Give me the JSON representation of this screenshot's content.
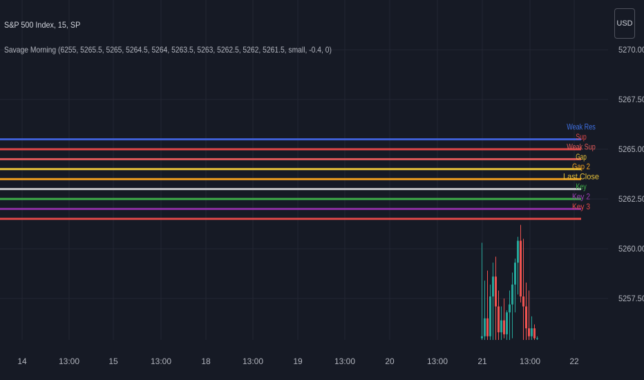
{
  "header": {
    "symbol_title": "S&P 500 Index, 15, SP",
    "indicator_text": "Savage Morning (6255, 5265.5, 5265, 5264.5, 5264, 5263.5, 5263, 5262.5, 5262, 5261.5, small, -0.4, 0)"
  },
  "currency_button": {
    "label": "USD"
  },
  "colors": {
    "background": "#161a25",
    "grid": "#232632",
    "axis_text": "#b2b5be",
    "candle_up": "#26a69a",
    "candle_down": "#ef5350"
  },
  "chart_data": {
    "type": "candlestick",
    "title": "S&P 500 Index, 15, SP",
    "y_axis": {
      "range": [
        5255.4,
        5270.1
      ],
      "ticks": [
        5257.5,
        5260.0,
        5262.5,
        5265.0,
        5267.5,
        5270.0
      ],
      "tick_labels": [
        "5257.50",
        "5260.00",
        "5262.50",
        "5265.00",
        "5267.50",
        "5270.00"
      ],
      "position": "right"
    },
    "x_axis": {
      "tick_labels": [
        "14",
        "13:00",
        "15",
        "13:00",
        "18",
        "13:00",
        "19",
        "13:00",
        "20",
        "13:00",
        "21",
        "13:00",
        "22"
      ]
    },
    "grid": true,
    "levels": [
      {
        "price": 5265.5,
        "label": "Weak Res",
        "color": "#3f5fd4",
        "label_color": "#3f6fe0"
      },
      {
        "price": 5265.0,
        "label": "Sup",
        "color": "#e04848",
        "label_color": "#e04848"
      },
      {
        "price": 5264.5,
        "label": "Weak Sup",
        "color": "#e05a5a",
        "label_color": "#e05a5a"
      },
      {
        "price": 5264.0,
        "label": "Gap",
        "color": "#e8c23a",
        "label_color": "#e8c23a"
      },
      {
        "price": 5263.5,
        "label": "Gap 2",
        "color": "#f0a020",
        "label_color": "#f0a020"
      },
      {
        "price": 5263.0,
        "label": "Last Close",
        "color": "#c9c9c9",
        "label_color": "#e8c23a"
      },
      {
        "price": 5262.5,
        "label": "Key",
        "color": "#3fae49",
        "label_color": "#3fae49"
      },
      {
        "price": 5262.0,
        "label": "Key 2",
        "color": "#8e2fa3",
        "label_color": "#9a3fb0"
      },
      {
        "price": 5261.5,
        "label": "Key 3",
        "color": "#e04848",
        "label_color": "#e04848"
      }
    ],
    "candles": [
      {
        "o": 5255.5,
        "h": 5260.3,
        "l": 5255.4,
        "c": 5255.6
      },
      {
        "o": 5255.6,
        "h": 5258.4,
        "l": 5255.4,
        "c": 5256.5
      },
      {
        "o": 5256.5,
        "h": 5258.9,
        "l": 5255.4,
        "c": 5255.6
      },
      {
        "o": 5255.6,
        "h": 5258.2,
        "l": 5255.4,
        "c": 5257.6
      },
      {
        "o": 5257.6,
        "h": 5259.3,
        "l": 5255.4,
        "c": 5258.6
      },
      {
        "o": 5258.6,
        "h": 5259.6,
        "l": 5255.4,
        "c": 5257.1
      },
      {
        "o": 5257.1,
        "h": 5257.9,
        "l": 5255.4,
        "c": 5255.8
      },
      {
        "o": 5255.8,
        "h": 5257.1,
        "l": 5255.4,
        "c": 5256.4
      },
      {
        "o": 5256.4,
        "h": 5257.5,
        "l": 5255.5,
        "c": 5255.7
      },
      {
        "o": 5255.7,
        "h": 5256.9,
        "l": 5255.4,
        "c": 5256.8
      },
      {
        "o": 5256.8,
        "h": 5257.9,
        "l": 5255.4,
        "c": 5257.2
      },
      {
        "o": 5257.2,
        "h": 5258.8,
        "l": 5255.5,
        "c": 5258.2
      },
      {
        "o": 5258.2,
        "h": 5259.5,
        "l": 5256.8,
        "c": 5259.3
      },
      {
        "o": 5259.3,
        "h": 5260.6,
        "l": 5257.7,
        "c": 5260.4
      },
      {
        "o": 5260.4,
        "h": 5261.2,
        "l": 5257.3,
        "c": 5257.6
      },
      {
        "o": 5257.6,
        "h": 5260.5,
        "l": 5255.4,
        "c": 5257.1
      },
      {
        "o": 5257.1,
        "h": 5258.3,
        "l": 5255.4,
        "c": 5256.0
      },
      {
        "o": 5256.0,
        "h": 5257.9,
        "l": 5255.4,
        "c": 5255.6
      },
      {
        "o": 5255.6,
        "h": 5256.6,
        "l": 5255.4,
        "c": 5256.0
      },
      {
        "o": 5256.0,
        "h": 5256.2,
        "l": 5255.4,
        "c": 5255.5
      },
      {
        "o": 5255.5,
        "h": 5255.6,
        "l": 5255.4,
        "c": 5255.5
      }
    ]
  }
}
